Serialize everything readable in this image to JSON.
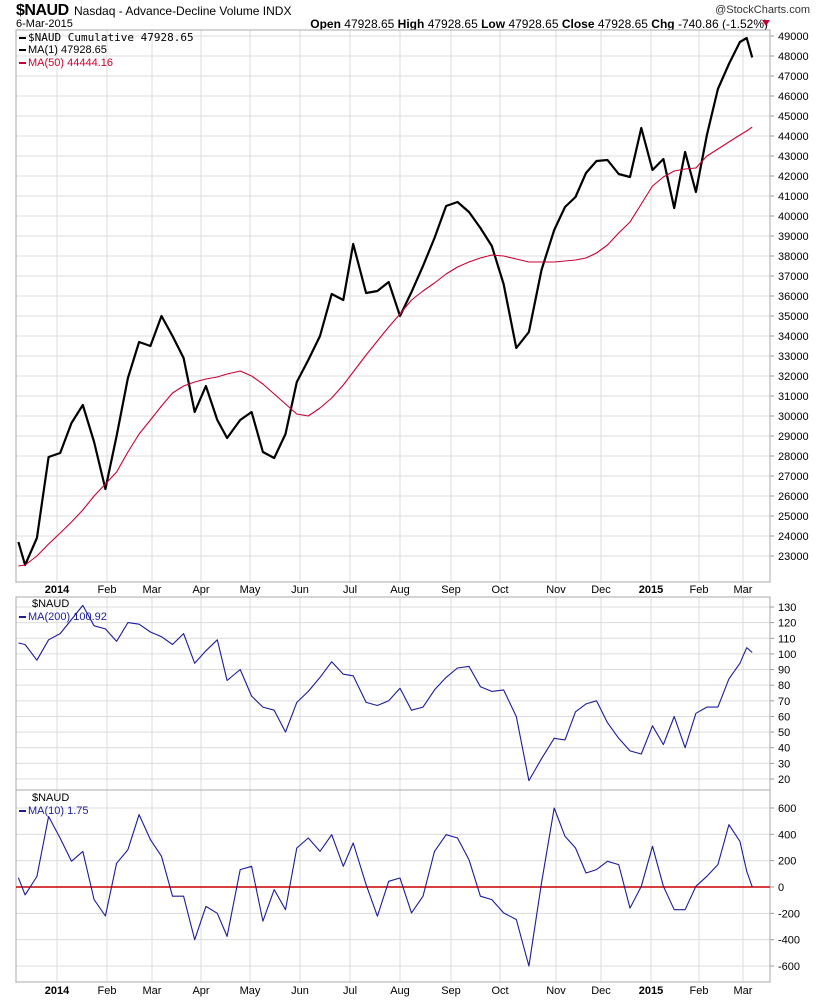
{
  "header": {
    "symbol": "$NAUD",
    "title": "Nasdaq - Advance-Decline Volume INDX",
    "brand": "@StockCharts.com",
    "date": "6-Mar-2015",
    "open_label": "Open",
    "open": "47928.65",
    "high_label": "High",
    "high": "47928.65",
    "low_label": "Low",
    "low": "47928.65",
    "close_label": "Close",
    "close": "47928.65",
    "chg_label": "Chg",
    "chg": "-740.86 (-1.52%)",
    "chg_icon": "down-triangle-icon"
  },
  "legends": {
    "main": [
      "$NAUD Cumulative 47928.65",
      "MA(1) 47928.65",
      "MA(50) 44444.16"
    ],
    "panel2": [
      "$NAUD",
      "MA(200) 100.92"
    ],
    "panel3": [
      "$NAUD",
      "MA(10) 1.75"
    ]
  },
  "colors": {
    "price": "#000000",
    "ma50": "#cc0033",
    "indicator": "#1c1c9c",
    "zero_line": "#cc0000",
    "grid": "#dcdcdc"
  },
  "chart_data": [
    {
      "type": "line",
      "title": "$NAUD Cumulative",
      "ylim": [
        22000,
        49500
      ],
      "yticks": [
        23000,
        24000,
        25000,
        26000,
        27000,
        28000,
        29000,
        30000,
        31000,
        32000,
        33000,
        34000,
        35000,
        36000,
        37000,
        38000,
        39000,
        40000,
        41000,
        42000,
        43000,
        44000,
        45000,
        46000,
        47000,
        48000,
        49000
      ],
      "grid": true,
      "legend": "top-left",
      "x_tick_labels": [
        "2014",
        "Feb",
        "Mar",
        "Apr",
        "May",
        "Jun",
        "Jul",
        "Aug",
        "Sep",
        "Oct",
        "Nov",
        "Dec",
        "2015",
        "Feb",
        "Mar"
      ],
      "x": [
        "2013-12-09",
        "2013-12-13",
        "2013-12-20",
        "2013-12-27",
        "2014-01-03",
        "2014-01-10",
        "2014-01-17",
        "2014-01-24",
        "2014-01-31",
        "2014-02-07",
        "2014-02-14",
        "2014-02-21",
        "2014-02-28",
        "2014-03-07",
        "2014-03-14",
        "2014-03-21",
        "2014-03-28",
        "2014-04-04",
        "2014-04-11",
        "2014-04-17",
        "2014-04-25",
        "2014-05-02",
        "2014-05-09",
        "2014-05-16",
        "2014-05-23",
        "2014-05-30",
        "2014-06-06",
        "2014-06-13",
        "2014-06-20",
        "2014-06-27",
        "2014-07-03",
        "2014-07-11",
        "2014-07-18",
        "2014-07-25",
        "2014-08-01",
        "2014-08-08",
        "2014-08-15",
        "2014-08-22",
        "2014-08-29",
        "2014-09-05",
        "2014-09-12",
        "2014-09-19",
        "2014-09-26",
        "2014-10-03",
        "2014-10-10",
        "2014-10-17",
        "2014-10-24",
        "2014-10-31",
        "2014-11-07",
        "2014-11-14",
        "2014-11-21",
        "2014-11-28",
        "2014-12-05",
        "2014-12-12",
        "2014-12-19",
        "2014-12-26",
        "2015-01-02",
        "2015-01-09",
        "2015-01-16",
        "2015-01-23",
        "2015-01-30",
        "2015-02-06",
        "2015-02-13",
        "2015-02-20",
        "2015-02-27",
        "2015-03-03",
        "2015-03-06"
      ],
      "series": [
        {
          "name": "MA(1)",
          "values": [
            23700,
            22550,
            23900,
            27950,
            28150,
            29650,
            30550,
            28700,
            26350,
            29000,
            31900,
            33700,
            33500,
            35000,
            34000,
            32900,
            30200,
            31500,
            29800,
            28900,
            29800,
            30200,
            28200,
            27900,
            29100,
            31700,
            32800,
            34000,
            36100,
            35800,
            38600,
            36150,
            36250,
            36700,
            35000,
            36200,
            37500,
            38900,
            40500,
            40700,
            40200,
            39400,
            38500,
            36600,
            33400,
            34200,
            37300,
            39300,
            40450,
            40950,
            42150,
            42750,
            42800,
            42100,
            41950,
            44400,
            42300,
            42850,
            40400,
            43200,
            41200,
            44050,
            46350,
            47600,
            48700,
            48900,
            47928.65
          ]
        },
        {
          "name": "MA(50)",
          "values": [
            22500,
            22550,
            23000,
            23600,
            24150,
            24700,
            25300,
            26000,
            26600,
            27200,
            28200,
            29100,
            29800,
            30500,
            31150,
            31500,
            31700,
            31850,
            31950,
            32100,
            32250,
            32000,
            31600,
            31100,
            30600,
            30100,
            30000,
            30400,
            30900,
            31550,
            32200,
            33050,
            33750,
            34450,
            35100,
            35800,
            36250,
            36650,
            37100,
            37450,
            37700,
            37900,
            38050,
            38000,
            37850,
            37700,
            37700,
            37700,
            37750,
            37800,
            37900,
            38150,
            38550,
            39150,
            39700,
            40600,
            41500,
            41950,
            42250,
            42350,
            42400,
            43000,
            43350,
            43700,
            44050,
            44250,
            44444.16
          ]
        }
      ]
    },
    {
      "type": "line",
      "title": "$NAUD",
      "ylim": [
        14,
        136
      ],
      "yticks": [
        20,
        30,
        40,
        50,
        60,
        70,
        80,
        90,
        100,
        110,
        120,
        130
      ],
      "grid": true,
      "series": [
        {
          "name": "MA(200)",
          "values": [
            107,
            106,
            96,
            109,
            113,
            122,
            131,
            118,
            116,
            108,
            120,
            119,
            114,
            111,
            106,
            113,
            94,
            102,
            109,
            83,
            90,
            73,
            66,
            64,
            50,
            69,
            76,
            85,
            95,
            87,
            86,
            69,
            67,
            70,
            78,
            64,
            66,
            77,
            85,
            91,
            92,
            79,
            76,
            77,
            60,
            19,
            33,
            46,
            45,
            63,
            68,
            70,
            56,
            46,
            38,
            36,
            54,
            42,
            60,
            40,
            62,
            66,
            66,
            84,
            94,
            104,
            100.92
          ]
        }
      ]
    },
    {
      "type": "line",
      "title": "$NAUD",
      "ylim": [
        -720,
        720
      ],
      "yticks": [
        -600,
        -400,
        -200,
        0,
        200,
        400,
        600
      ],
      "grid": true,
      "reference_line": 0,
      "series": [
        {
          "name": "MA(10)",
          "values": [
            70,
            -60,
            80,
            535,
            370,
            195,
            270,
            -96,
            -220,
            180,
            283,
            550,
            360,
            233,
            -70,
            -70,
            -400,
            -147,
            -200,
            -375,
            132,
            157,
            -260,
            -20,
            -172,
            296,
            372,
            270,
            397,
            157,
            334,
            18,
            -222,
            43,
            68,
            -197,
            -70,
            270,
            397,
            372,
            207,
            -70,
            -96,
            -197,
            -247,
            -600,
            30,
            600,
            385,
            296,
            106,
            132,
            195,
            170,
            -160,
            5,
            309,
            5,
            -172,
            -172,
            5,
            81,
            170,
            473,
            347,
            120,
            1.75
          ]
        }
      ]
    }
  ]
}
